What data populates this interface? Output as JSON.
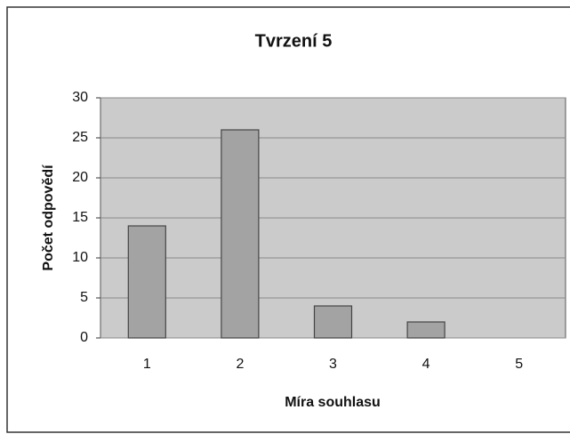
{
  "chart_data": {
    "type": "bar",
    "title": "Tvrzení 5",
    "xlabel": "Míra souhlasu",
    "ylabel": "Počet odpovědí",
    "categories": [
      "1",
      "2",
      "3",
      "4",
      "5"
    ],
    "values": [
      14,
      26,
      4,
      2,
      0
    ],
    "color": "#a3a3a3",
    "ylim": [
      0,
      30
    ],
    "yticks": [
      0,
      5,
      10,
      15,
      20,
      25,
      30
    ],
    "grid": true
  }
}
